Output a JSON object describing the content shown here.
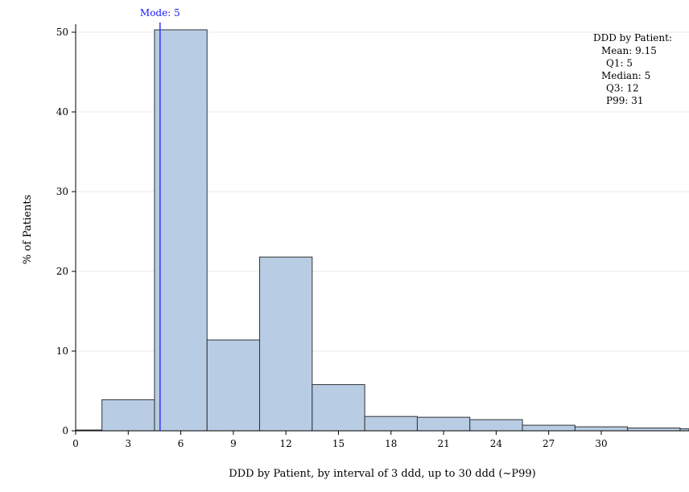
{
  "chart_data": {
    "type": "bar",
    "xlabel": "DDD by Patient, by interval of 3 ddd, up to 30 ddd (~P99)",
    "ylabel": "% of Patients",
    "xlim": [
      0,
      35
    ],
    "ylim": [
      0,
      51
    ],
    "x_ticks": [
      0,
      3,
      6,
      9,
      12,
      15,
      18,
      21,
      24,
      27,
      30
    ],
    "y_ticks": [
      0,
      10,
      20,
      30,
      40,
      50
    ],
    "bins": [
      {
        "start": -1.5,
        "end": 1.5,
        "value": 0.1
      },
      {
        "start": 1.5,
        "end": 4.5,
        "value": 3.9
      },
      {
        "start": 4.5,
        "end": 7.5,
        "value": 50.3
      },
      {
        "start": 7.5,
        "end": 10.5,
        "value": 11.4
      },
      {
        "start": 10.5,
        "end": 13.5,
        "value": 21.8
      },
      {
        "start": 13.5,
        "end": 16.5,
        "value": 5.8
      },
      {
        "start": 16.5,
        "end": 19.5,
        "value": 1.8
      },
      {
        "start": 19.5,
        "end": 22.5,
        "value": 1.7
      },
      {
        "start": 22.5,
        "end": 25.5,
        "value": 1.4
      },
      {
        "start": 25.5,
        "end": 28.5,
        "value": 0.7
      },
      {
        "start": 28.5,
        "end": 31.5,
        "value": 0.5
      },
      {
        "start": 31.5,
        "end": 34.5,
        "value": 0.35
      },
      {
        "start": 34.5,
        "end": 37.5,
        "value": 0.25
      }
    ],
    "mode_line": {
      "x": 5,
      "label": "Mode: 5"
    },
    "stats_box": {
      "title": "DDD by Patient:",
      "lines": [
        "Mean: 9.15",
        "Q1: 5",
        "Median: 5",
        "Q3: 12",
        "P99: 31"
      ]
    },
    "colors": {
      "bar_fill": "#b8cce4",
      "bar_stroke": "#333333",
      "mode_line": "#3333ff",
      "grid": "#e8e8e8"
    }
  }
}
